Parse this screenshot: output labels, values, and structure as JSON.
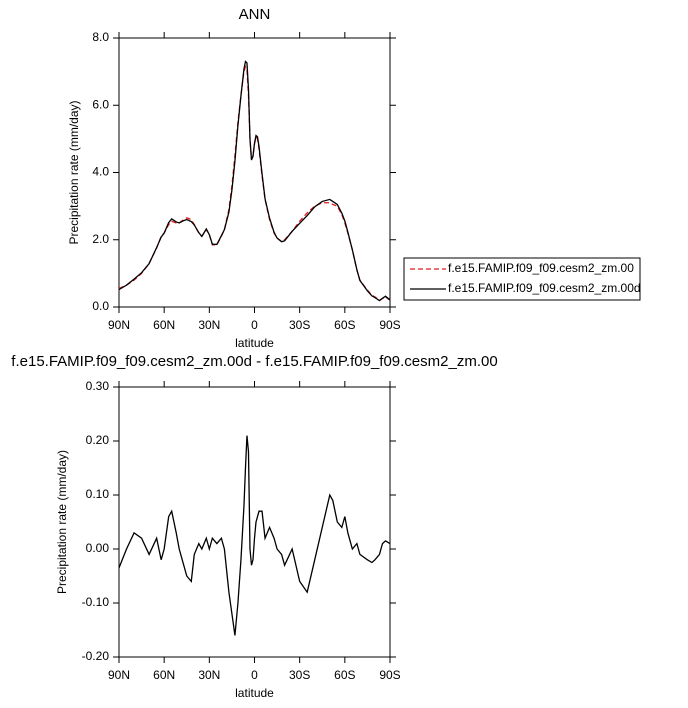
{
  "chart_data": [
    {
      "type": "line",
      "title": "ANN",
      "xlabel": "latitude",
      "ylabel": "Precipitation rate (mm/day)",
      "x": [
        90,
        85,
        80,
        75,
        70,
        65,
        62,
        60,
        57,
        55,
        52,
        50,
        47,
        45,
        42,
        40,
        37,
        35,
        32,
        30,
        28,
        25,
        22,
        20,
        17,
        15,
        13,
        11,
        9,
        7,
        6,
        5,
        4,
        3,
        2,
        1,
        0,
        -1,
        -2,
        -3,
        -5,
        -7,
        -10,
        -13,
        -15,
        -18,
        -20,
        -25,
        -30,
        -35,
        -40,
        -45,
        -50,
        -52,
        -55,
        -58,
        -60,
        -62,
        -65,
        -68,
        -70,
        -75,
        -78,
        -80,
        -83,
        -85,
        -87,
        -90
      ],
      "series": [
        {
          "name": "f.e15.FAMIP.f09_f09.cesm2_zm.00",
          "color": "#e41a1c",
          "dashed": true,
          "values": [
            0.55,
            0.65,
            0.8,
            1.0,
            1.3,
            1.75,
            2.1,
            2.2,
            2.45,
            2.55,
            2.5,
            2.5,
            2.6,
            2.65,
            2.6,
            2.45,
            2.2,
            2.1,
            2.3,
            2.15,
            1.85,
            1.85,
            2.1,
            2.3,
            2.9,
            3.6,
            4.5,
            5.5,
            6.3,
            7.0,
            7.15,
            7.05,
            6.3,
            5.0,
            4.4,
            4.5,
            4.85,
            5.05,
            5.0,
            4.7,
            3.9,
            3.2,
            2.6,
            2.2,
            2.05,
            1.95,
            2.0,
            2.25,
            2.55,
            2.8,
            3.0,
            3.1,
            3.1,
            3.05,
            3.0,
            2.75,
            2.5,
            2.2,
            1.7,
            1.1,
            0.8,
            0.5,
            0.35,
            0.3,
            0.2,
            0.25,
            0.3,
            0.2
          ]
        },
        {
          "name": "f.e15.FAMIP.f09_f09.cesm2_zm.00d",
          "color": "#000000",
          "dashed": false,
          "values": [
            0.52,
            0.65,
            0.83,
            1.02,
            1.29,
            1.77,
            2.08,
            2.2,
            2.51,
            2.62,
            2.53,
            2.5,
            2.57,
            2.6,
            2.54,
            2.44,
            2.21,
            2.1,
            2.32,
            2.15,
            1.87,
            1.86,
            2.12,
            2.3,
            2.82,
            3.48,
            4.34,
            5.4,
            6.28,
            7.08,
            7.3,
            7.26,
            6.48,
            5.0,
            4.37,
            4.48,
            4.87,
            5.1,
            5.06,
            4.77,
            3.97,
            3.22,
            2.64,
            2.22,
            2.05,
            1.94,
            1.97,
            2.25,
            2.49,
            2.72,
            2.98,
            3.14,
            3.2,
            3.14,
            3.05,
            2.79,
            2.56,
            2.23,
            1.7,
            1.11,
            0.79,
            0.48,
            0.33,
            0.28,
            0.19,
            0.26,
            0.32,
            0.21
          ]
        }
      ],
      "xlim": [
        90,
        -90
      ],
      "ylim": [
        0,
        8
      ],
      "xticks": [
        {
          "value": 90,
          "label": "90N"
        },
        {
          "value": 60,
          "label": "60N"
        },
        {
          "value": 30,
          "label": "30N"
        },
        0,
        {
          "value": -30,
          "label": "30S"
        },
        {
          "value": -60,
          "label": "60S"
        },
        {
          "value": -90,
          "label": "90S"
        }
      ],
      "yticks": [
        {
          "value": 0,
          "label": "0.0"
        },
        {
          "value": 2,
          "label": "2.0"
        },
        {
          "value": 4,
          "label": "4.0"
        },
        {
          "value": 6,
          "label": "6.0"
        },
        {
          "value": 8,
          "label": "8.0"
        }
      ],
      "legend": "right"
    },
    {
      "type": "line",
      "title": "f.e15.FAMIP.f09_f09.cesm2_zm.00d - f.e15.FAMIP.f09_f09.cesm2_zm.00",
      "xlabel": "latitude",
      "ylabel": "Precipitation rate (mm/day)",
      "x": [
        90,
        85,
        80,
        75,
        70,
        65,
        62,
        60,
        57,
        55,
        52,
        50,
        47,
        45,
        42,
        40,
        37,
        35,
        32,
        30,
        28,
        25,
        22,
        20,
        17,
        15,
        13,
        11,
        9,
        7,
        6,
        5,
        4,
        3,
        2,
        1,
        0,
        -1,
        -2,
        -3,
        -5,
        -7,
        -10,
        -13,
        -15,
        -18,
        -20,
        -25,
        -30,
        -35,
        -40,
        -45,
        -50,
        -52,
        -55,
        -58,
        -60,
        -62,
        -65,
        -68,
        -70,
        -75,
        -78,
        -80,
        -83,
        -85,
        -87,
        -90
      ],
      "series": [
        {
          "color": "#000000",
          "dashed": false,
          "values": [
            -0.035,
            0.0,
            0.03,
            0.02,
            -0.01,
            0.02,
            -0.02,
            0.0,
            0.06,
            0.07,
            0.03,
            0.0,
            -0.03,
            -0.05,
            -0.06,
            -0.01,
            0.01,
            0.0,
            0.02,
            0.0,
            0.02,
            0.01,
            0.02,
            0.0,
            -0.08,
            -0.12,
            -0.16,
            -0.1,
            -0.02,
            0.08,
            0.15,
            0.21,
            0.18,
            0.0,
            -0.03,
            -0.02,
            0.02,
            0.05,
            0.06,
            0.07,
            0.07,
            0.02,
            0.04,
            0.02,
            0.0,
            -0.01,
            -0.03,
            0.0,
            -0.06,
            -0.08,
            -0.02,
            0.04,
            0.1,
            0.09,
            0.05,
            0.04,
            0.06,
            0.03,
            0.0,
            0.01,
            -0.01,
            -0.02,
            -0.025,
            -0.02,
            -0.01,
            0.01,
            0.015,
            0.01
          ]
        }
      ],
      "xlim": [
        90,
        -90
      ],
      "ylim": [
        -0.2,
        0.3
      ],
      "xticks": [
        {
          "value": 90,
          "label": "90N"
        },
        {
          "value": 60,
          "label": "60N"
        },
        {
          "value": 30,
          "label": "30N"
        },
        0,
        {
          "value": -30,
          "label": "30S"
        },
        {
          "value": -60,
          "label": "60S"
        },
        {
          "value": -90,
          "label": "90S"
        }
      ],
      "yticks": [
        {
          "value": -0.2,
          "label": "-0.20"
        },
        {
          "value": -0.1,
          "label": "-0.10"
        },
        {
          "value": 0,
          "label": "0.00"
        },
        {
          "value": 0.1,
          "label": "0.10"
        },
        {
          "value": 0.2,
          "label": "0.20"
        },
        {
          "value": 0.3,
          "label": "0.30"
        }
      ]
    }
  ]
}
